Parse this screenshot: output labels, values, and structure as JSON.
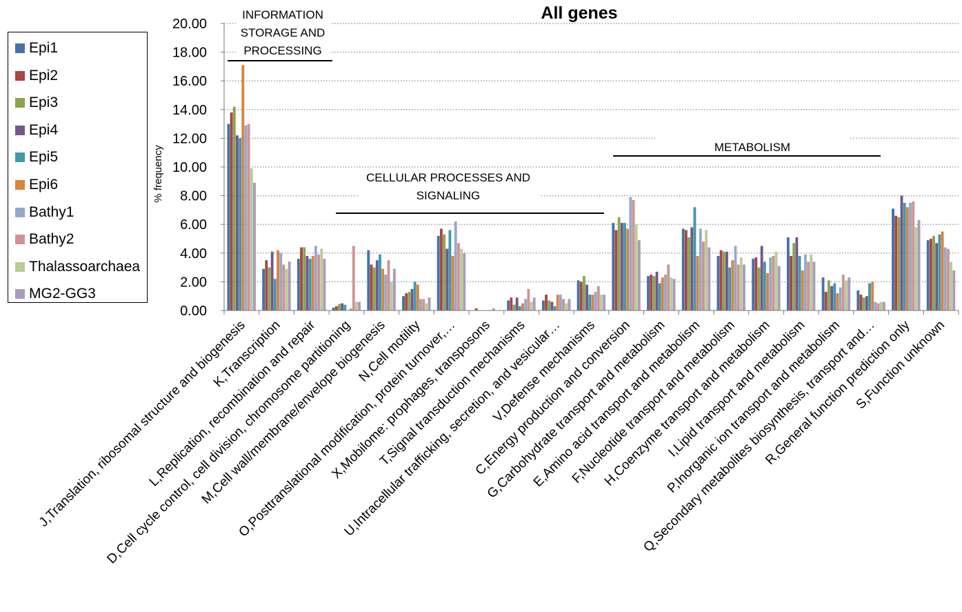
{
  "chart_data": {
    "type": "bar",
    "title": "All genes",
    "ylabel": "% frequency",
    "xlabel": "",
    "ylim": [
      0,
      20
    ],
    "yticks": [
      "0.00",
      "2.00",
      "4.00",
      "6.00",
      "8.00",
      "10.00",
      "12.00",
      "14.00",
      "16.00",
      "18.00",
      "20.00"
    ],
    "grid": "dotted horizontal",
    "legend_position": "left",
    "categories": [
      "J,Translation, ribosomal structure and biogenesis",
      "K,Transcription",
      "L,Replication, recombination and repair",
      "D,Cell cycle control, cell division, chromosome partitioning",
      "M,Cell wall/membrane/envelope biogenesis",
      "N,Cell motility",
      "O,Posttranslational modification, protein turnover,…",
      "X,Mobilome: prophages, transposons",
      "T,Signal transduction mechanisms",
      "U,Intracellular trafficking, secretion, and vesicular…",
      "V,Defense mechanisms",
      "C,Energy production and conversion",
      "G,Carbohydrate transport and metabolism",
      "E,Amino acid transport and metabolism",
      "F,Nucleotide transport and metabolism",
      "H,Coenzyme transport and metabolism",
      "I,Lipid transport and metabolism",
      "P,Inorganic ion transport and metabolism",
      "Q,Secondary metabolites biosynthesis, transport and…",
      "R,General function prediction only",
      "S,Function unknown"
    ],
    "series": [
      {
        "name": "Epi1",
        "color": "#4572A7",
        "values": [
          13.0,
          2.9,
          3.6,
          0.2,
          4.2,
          1.0,
          5.2,
          0.0,
          0.7,
          0.7,
          2.1,
          6.1,
          2.4,
          5.7,
          3.8,
          3.6,
          5.1,
          2.3,
          1.4,
          7.1,
          4.9
        ]
      },
      {
        "name": "Epi2",
        "color": "#AA4643",
        "values": [
          13.8,
          3.5,
          4.4,
          0.3,
          3.2,
          1.2,
          5.7,
          0.15,
          0.9,
          1.1,
          2.0,
          5.6,
          2.5,
          5.6,
          4.2,
          3.7,
          3.8,
          1.3,
          1.1,
          6.6,
          5.0
        ]
      },
      {
        "name": "Epi3",
        "color": "#89A54E",
        "values": [
          14.2,
          3.0,
          4.4,
          0.45,
          3.0,
          1.3,
          5.3,
          0.0,
          0.4,
          0.7,
          2.4,
          6.5,
          2.4,
          5.1,
          4.1,
          3.0,
          4.7,
          2.1,
          0.9,
          6.5,
          5.2
        ]
      },
      {
        "name": "Epi4",
        "color": "#71588F",
        "values": [
          12.2,
          4.1,
          3.8,
          0.5,
          3.5,
          1.5,
          4.3,
          0.0,
          0.9,
          0.6,
          1.8,
          6.1,
          2.7,
          5.8,
          4.1,
          4.5,
          5.1,
          1.7,
          1.0,
          8.0,
          4.7
        ]
      },
      {
        "name": "Epi5",
        "color": "#4198AF",
        "values": [
          12.0,
          2.2,
          3.6,
          0.4,
          3.9,
          2.0,
          5.6,
          0.0,
          0.3,
          0.3,
          1.1,
          6.1,
          1.9,
          7.2,
          3.0,
          3.4,
          3.8,
          1.9,
          1.9,
          7.5,
          5.3
        ]
      },
      {
        "name": "Epi6",
        "color": "#DB843D",
        "values": [
          17.1,
          4.2,
          3.8,
          0.0,
          2.9,
          1.8,
          3.8,
          0.0,
          0.5,
          1.1,
          1.1,
          5.7,
          2.3,
          3.8,
          3.5,
          2.6,
          2.8,
          1.2,
          2.0,
          7.2,
          5.5
        ]
      },
      {
        "name": "Bathy1",
        "color": "#93A9CF",
        "values": [
          12.9,
          4.0,
          4.5,
          0.15,
          2.5,
          0.8,
          6.2,
          0.0,
          0.8,
          1.1,
          1.3,
          7.9,
          2.5,
          5.7,
          4.5,
          3.7,
          3.9,
          1.6,
          0.6,
          7.5,
          4.4
        ]
      },
      {
        "name": "Bathy2",
        "color": "#D19392",
        "values": [
          13.0,
          3.2,
          3.9,
          4.5,
          3.5,
          0.8,
          4.7,
          0.15,
          1.5,
          0.8,
          1.7,
          7.7,
          3.2,
          4.8,
          3.2,
          3.8,
          3.4,
          2.5,
          0.5,
          7.6,
          4.3
        ]
      },
      {
        "name": "Thalassoarchaea",
        "color": "#B9CD96",
        "values": [
          9.9,
          2.9,
          4.3,
          0.6,
          2.0,
          0.5,
          4.3,
          0.0,
          0.6,
          0.5,
          1.1,
          6.0,
          2.3,
          5.6,
          3.7,
          4.1,
          3.9,
          2.1,
          0.6,
          5.8,
          3.4
        ]
      },
      {
        "name": "MG2-GG3",
        "color": "#A99BBD",
        "values": [
          8.9,
          3.4,
          3.6,
          0.6,
          2.9,
          0.9,
          4.0,
          0.0,
          0.9,
          0.8,
          1.1,
          4.9,
          2.2,
          4.4,
          3.2,
          3.1,
          3.4,
          2.3,
          0.6,
          6.3,
          2.8
        ]
      }
    ],
    "annotations": [
      {
        "text": "INFORMATION STORAGE AND PROCESSING",
        "lines": [
          "INFORMATION",
          "STORAGE AND",
          "PROCESSING"
        ]
      },
      {
        "text": "CELLULAR PROCESSES AND SIGNALING",
        "lines": [
          "CELLULAR PROCESSES AND",
          "SIGNALING"
        ]
      },
      {
        "text": "METABOLISM",
        "lines": [
          "METABOLISM"
        ]
      }
    ]
  }
}
